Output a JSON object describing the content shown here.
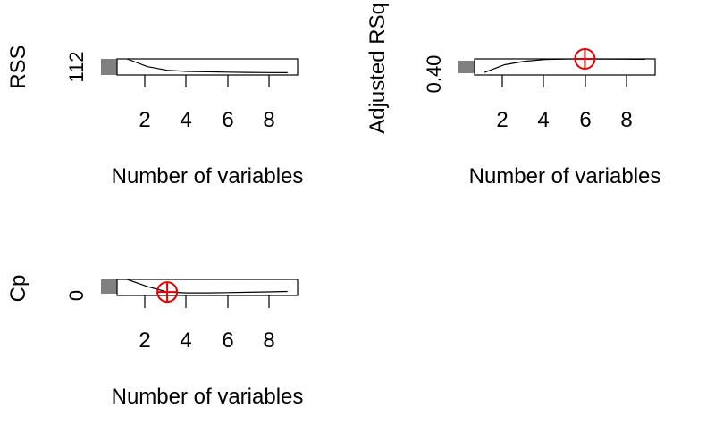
{
  "chart_data": [
    {
      "type": "line",
      "ylabel": "RSS",
      "xlabel": "Number of variables",
      "xlim": [
        0.5,
        9.5
      ],
      "x_ticks": [
        "2",
        "4",
        "6",
        "8"
      ],
      "y_tick_label": "112",
      "x": [
        1,
        2,
        3,
        4,
        5,
        6,
        7,
        8,
        9
      ],
      "y": [
        1.0,
        0.4,
        0.12,
        0.03,
        0.0,
        -0.03,
        -0.05,
        -0.06,
        -0.07
      ],
      "ylim": [
        -0.25,
        1.0
      ],
      "marker": null
    },
    {
      "type": "line",
      "ylabel": "Adjusted RSq",
      "xlabel": "Number of variables",
      "xlim": [
        0.5,
        9.5
      ],
      "x_ticks": [
        "2",
        "4",
        "6",
        "8"
      ],
      "y_tick_label": "0.40",
      "x": [
        1,
        2,
        3,
        4,
        5,
        6,
        7,
        8,
        9
      ],
      "y": [
        -0.05,
        0.55,
        0.82,
        0.95,
        0.99,
        1.0,
        0.99,
        0.98,
        0.97
      ],
      "ylim": [
        -0.25,
        1.0
      ],
      "marker": {
        "x": 6,
        "y": 1.0,
        "color": "#e00000"
      }
    },
    {
      "type": "line",
      "ylabel": "Cp",
      "xlabel": "Number of variables",
      "xlim": [
        0.5,
        9.5
      ],
      "x_ticks": [
        "2",
        "4",
        "6",
        "8"
      ],
      "y_tick_label": "0",
      "x": [
        1,
        2,
        3,
        4,
        5,
        6,
        7,
        8,
        9
      ],
      "y": [
        1.0,
        0.45,
        0.02,
        -0.05,
        -0.05,
        -0.03,
        0.0,
        0.03,
        0.06
      ],
      "ylim": [
        -0.25,
        1.0
      ],
      "marker": {
        "x": 3,
        "y": 0.02,
        "color": "#e00000"
      }
    }
  ]
}
